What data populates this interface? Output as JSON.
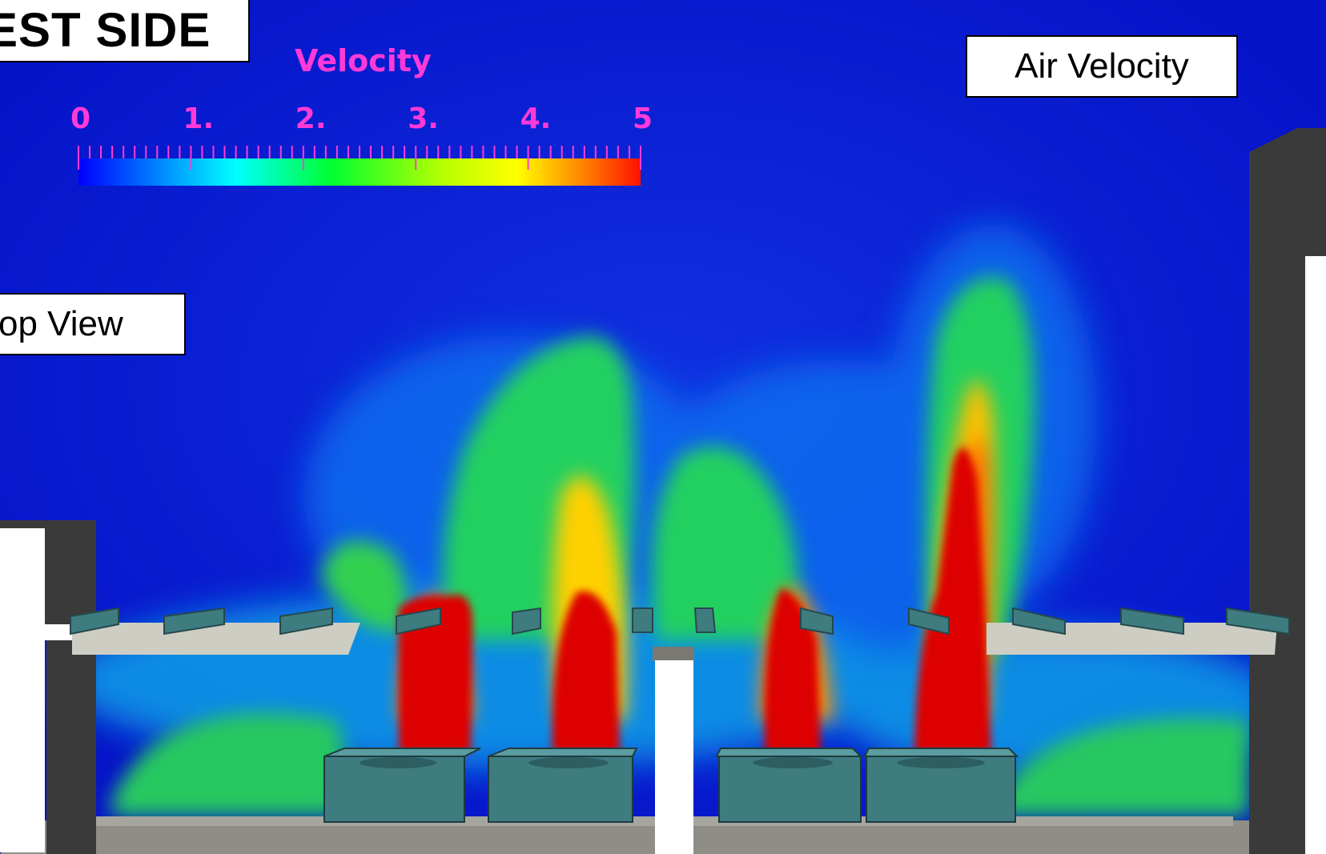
{
  "panel_labels": {
    "side": "EST  SIDE",
    "view": "op View",
    "field": "Air Velocity"
  },
  "colorbar": {
    "title": "Velocity",
    "ticks": [
      "0",
      "1.",
      "2.",
      "3.",
      "4.",
      "5"
    ],
    "range": [
      0,
      5
    ],
    "colors": [
      "#0000ff",
      "#00b0ff",
      "#00ffff",
      "#00ff40",
      "#b0ff00",
      "#ffff00",
      "#ff9000",
      "#ff2000"
    ]
  },
  "colors": {
    "background_field": "#0a19d2",
    "equipment": "#3e7c80",
    "wall": "#3a3a3a",
    "slab": "#cdcdc4",
    "hot_core": "#e60000",
    "label_text": "#ff3ad8"
  }
}
